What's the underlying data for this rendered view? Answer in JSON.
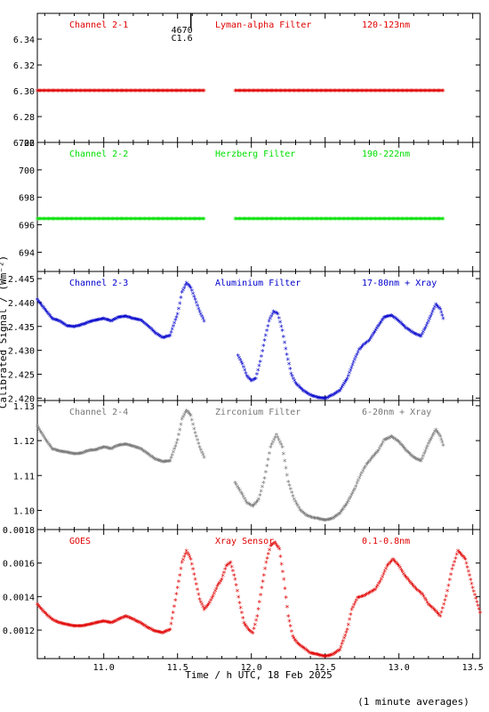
{
  "figure": {
    "ylabel": "Calibrated Signal / (Wm⁻²)",
    "xlabel": "Time / h UTC, 18 Feb 2025",
    "footer": "(1 minute averages)",
    "marker": {
      "time": 11.53,
      "labels": [
        "4670",
        "C1.6"
      ]
    }
  },
  "chart_data": [
    {
      "type": "scatter",
      "labels": [
        "Channel 2-1",
        "Lyman-alpha Filter",
        "120-123nm"
      ],
      "color": "#e00000",
      "ylim": [
        6.26,
        6.36
      ],
      "yticks": [
        6.26,
        6.28,
        6.3,
        6.32,
        6.34
      ],
      "ytick_labels": [
        "6.26",
        "6.28",
        "6.30",
        "6.32",
        "6.34"
      ],
      "segments": [
        {
          "x": [
            10.55,
            11.68
          ],
          "y": [
            6.2995,
            6.2995
          ]
        },
        {
          "x": [
            11.89,
            13.3
          ],
          "y": [
            6.2995,
            6.2995
          ]
        }
      ]
    },
    {
      "type": "scatter",
      "labels": [
        "Channel 2-2",
        "Herzberg Filter",
        "190-222nm"
      ],
      "color": "#00e000",
      "ylim": [
        692.6,
        702
      ],
      "yticks": [
        694,
        696,
        698,
        700,
        702
      ],
      "ytick_labels": [
        "694",
        "696",
        "698",
        "700",
        "702"
      ],
      "segments": [
        {
          "x": [
            10.55,
            11.68
          ],
          "y": [
            696.4,
            696.4
          ]
        },
        {
          "x": [
            11.89,
            13.3
          ],
          "y": [
            696.4,
            696.4
          ]
        }
      ]
    },
    {
      "type": "scatter",
      "labels": [
        "Channel 2-3",
        "Aluminium Filter",
        "17-80nm + Xray"
      ],
      "color": "#0000cc",
      "ylim": [
        2.4195,
        2.4465
      ],
      "yticks": [
        2.42,
        2.425,
        2.43,
        2.435,
        2.44,
        2.445
      ],
      "ytick_labels": [
        "2.420",
        "2.425",
        "2.430",
        "2.435",
        "2.440",
        "2.445"
      ],
      "segments": [
        {
          "x": [
            10.55,
            10.6,
            10.65,
            10.7,
            10.75,
            10.8,
            10.85,
            10.9,
            10.95,
            11.0,
            11.05,
            11.1,
            11.15,
            11.2,
            11.25,
            11.3,
            11.35,
            11.4,
            11.45,
            11.5,
            11.53,
            11.56,
            11.59,
            11.62,
            11.65,
            11.68
          ],
          "y": [
            2.4405,
            2.4385,
            2.4365,
            2.436,
            2.435,
            2.4348,
            2.4352,
            2.4358,
            2.4362,
            2.4365,
            2.436,
            2.4368,
            2.437,
            2.4365,
            2.4362,
            2.435,
            2.4335,
            2.4325,
            2.433,
            2.4375,
            2.442,
            2.444,
            2.443,
            2.4405,
            2.438,
            2.436
          ]
        },
        {
          "x": [
            11.91,
            11.94,
            11.97,
            12.0,
            12.03,
            12.06,
            12.09,
            12.12,
            12.15,
            12.18,
            12.21,
            12.24,
            12.27,
            12.3,
            12.35,
            12.4,
            12.45,
            12.5,
            12.55,
            12.6,
            12.65,
            12.7,
            12.73,
            12.76,
            12.8,
            12.85,
            12.9,
            12.95,
            13.0,
            13.05,
            13.1,
            13.15,
            13.2,
            13.25,
            13.28,
            13.3
          ],
          "y": [
            2.4288,
            2.427,
            2.4245,
            2.4235,
            2.424,
            2.4275,
            2.432,
            2.436,
            2.438,
            2.4375,
            2.434,
            2.429,
            2.425,
            2.423,
            2.4215,
            2.4205,
            2.42,
            2.4198,
            2.4205,
            2.4215,
            2.424,
            2.428,
            2.43,
            2.431,
            2.432,
            2.4345,
            2.4368,
            2.4372,
            2.436,
            2.4345,
            2.4335,
            2.4328,
            2.436,
            2.4395,
            2.4385,
            2.4365
          ]
        }
      ]
    },
    {
      "type": "scatter",
      "labels": [
        "Channel 2-4",
        "Zirconium Filter",
        "6-20nm + Xray"
      ],
      "color": "#777777",
      "ylim": [
        1.0945,
        1.1315
      ],
      "yticks": [
        1.1,
        1.11,
        1.12,
        1.13
      ],
      "ytick_labels": [
        "1.10",
        "1.11",
        "1.12",
        "1.13"
      ],
      "segments": [
        {
          "x": [
            10.55,
            10.6,
            10.65,
            10.7,
            10.75,
            10.8,
            10.85,
            10.9,
            10.95,
            11.0,
            11.05,
            11.1,
            11.15,
            11.2,
            11.25,
            11.3,
            11.35,
            11.4,
            11.45,
            11.5,
            11.53,
            11.56,
            11.59,
            11.62,
            11.65,
            11.68
          ],
          "y": [
            1.124,
            1.1205,
            1.1175,
            1.1168,
            1.1165,
            1.116,
            1.1162,
            1.117,
            1.1172,
            1.118,
            1.1175,
            1.1185,
            1.1188,
            1.1182,
            1.1175,
            1.116,
            1.1145,
            1.1138,
            1.114,
            1.12,
            1.126,
            1.1285,
            1.127,
            1.122,
            1.118,
            1.115
          ]
        },
        {
          "x": [
            11.89,
            11.93,
            11.97,
            12.01,
            12.05,
            12.09,
            12.13,
            12.17,
            12.21,
            12.25,
            12.29,
            12.33,
            12.37,
            12.41,
            12.45,
            12.5,
            12.55,
            12.6,
            12.65,
            12.7,
            12.74,
            12.78,
            12.82,
            12.86,
            12.9,
            12.95,
            13.0,
            13.05,
            13.1,
            13.15,
            13.2,
            13.25,
            13.28,
            13.3
          ],
          "y": [
            1.1078,
            1.105,
            1.102,
            1.101,
            1.103,
            1.109,
            1.118,
            1.1215,
            1.118,
            1.108,
            1.103,
            1.1,
            1.0985,
            1.0978,
            1.0975,
            1.097,
            1.0975,
            1.099,
            1.102,
            1.106,
            1.11,
            1.113,
            1.115,
            1.117,
            1.12,
            1.121,
            1.1195,
            1.117,
            1.115,
            1.114,
            1.119,
            1.123,
            1.121,
            1.1185
          ]
        }
      ]
    },
    {
      "type": "scatter",
      "labels": [
        "GOES",
        "Xray Sensor",
        "0.1-0.8nm"
      ],
      "color": "#e00000",
      "ylim": [
        0.00103,
        0.0018
      ],
      "yticks": [
        0.0012,
        0.0014,
        0.0016,
        0.0018
      ],
      "ytick_labels": [
        "0.0012",
        "0.0014",
        "0.0016",
        "0.0018"
      ],
      "segments": [
        {
          "x": [
            10.55,
            10.6,
            10.65,
            10.7,
            10.75,
            10.8,
            10.85,
            10.9,
            10.95,
            11.0,
            11.05,
            11.1,
            11.15,
            11.2,
            11.25,
            11.3,
            11.35,
            11.4,
            11.45,
            11.47,
            11.5,
            11.53,
            11.56,
            11.59,
            11.62,
            11.65,
            11.68,
            11.71,
            11.74,
            11.77,
            11.8,
            11.83,
            11.86,
            11.89,
            11.92,
            11.95,
            11.98,
            12.01,
            12.04,
            12.07,
            12.1,
            12.13,
            12.16,
            12.19,
            12.22,
            12.25,
            12.28,
            12.31,
            12.34,
            12.37,
            12.4,
            12.45,
            12.5,
            12.55,
            12.6,
            12.65,
            12.68,
            12.72,
            12.76,
            12.8,
            12.84,
            12.88,
            12.92,
            12.96,
            13.0,
            13.04,
            13.08,
            13.12,
            13.16,
            13.2,
            13.24,
            13.28,
            13.32,
            13.36,
            13.4,
            13.45,
            13.5,
            13.55
          ],
          "y": [
            0.00135,
            0.0013,
            0.00126,
            0.00124,
            0.00123,
            0.00122,
            0.00122,
            0.00123,
            0.00124,
            0.00125,
            0.00124,
            0.00126,
            0.00128,
            0.00126,
            0.00124,
            0.00121,
            0.00119,
            0.00118,
            0.0012,
            0.0013,
            0.00145,
            0.0016,
            0.00167,
            0.00162,
            0.0015,
            0.00138,
            0.00132,
            0.00135,
            0.0014,
            0.00146,
            0.0015,
            0.00158,
            0.0016,
            0.0015,
            0.00136,
            0.00124,
            0.0012,
            0.00118,
            0.00128,
            0.00145,
            0.0016,
            0.0017,
            0.00172,
            0.00168,
            0.0015,
            0.00128,
            0.00116,
            0.00112,
            0.0011,
            0.00108,
            0.00106,
            0.00105,
            0.00104,
            0.00105,
            0.00108,
            0.0012,
            0.00132,
            0.00139,
            0.0014,
            0.00142,
            0.00144,
            0.0015,
            0.00158,
            0.00162,
            0.00158,
            0.00152,
            0.00148,
            0.00144,
            0.00141,
            0.00135,
            0.00132,
            0.00128,
            0.0014,
            0.00156,
            0.00167,
            0.00162,
            0.00145,
            0.0013
          ]
        }
      ]
    }
  ],
  "xaxis": {
    "xlim": [
      10.55,
      13.55
    ],
    "ticks": [
      11.0,
      11.5,
      12.0,
      12.5,
      13.0,
      13.5
    ],
    "tick_labels": [
      "11.0",
      "11.5",
      "12.0",
      "12.5",
      "13.0",
      "13.5"
    ],
    "minor_step": 0.1
  }
}
